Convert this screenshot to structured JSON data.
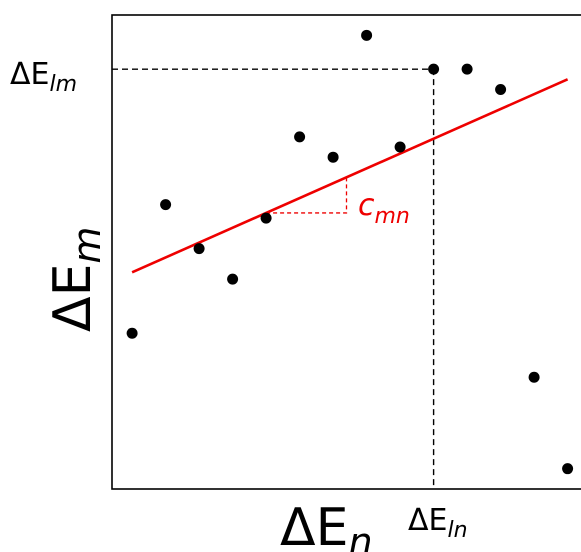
{
  "chart_data": {
    "type": "scatter",
    "title": "",
    "xlabel": {
      "base": "ΔE",
      "sub": "n"
    },
    "ylabel": {
      "base": "ΔE",
      "sub": "m"
    },
    "xlim": [
      0,
      14
    ],
    "ylim": [
      0,
      14
    ],
    "grid": false,
    "ticks": false,
    "series": [
      {
        "points": [
          {
            "x": 0.6,
            "y": 4.6
          },
          {
            "x": 1.6,
            "y": 8.4
          },
          {
            "x": 2.6,
            "y": 7.1
          },
          {
            "x": 3.6,
            "y": 6.2
          },
          {
            "x": 4.6,
            "y": 8.0
          },
          {
            "x": 5.6,
            "y": 10.4
          },
          {
            "x": 6.6,
            "y": 9.8
          },
          {
            "x": 7.6,
            "y": 13.4
          },
          {
            "x": 8.6,
            "y": 10.1
          },
          {
            "x": 9.6,
            "y": 12.4
          },
          {
            "x": 10.6,
            "y": 12.4
          },
          {
            "x": 11.6,
            "y": 11.8
          },
          {
            "x": 12.6,
            "y": 3.3
          },
          {
            "x": 13.6,
            "y": 0.6
          }
        ],
        "color": "#000000"
      }
    ],
    "fit_line": {
      "color": "#ee0000",
      "x": [
        0.6,
        13.6
      ],
      "y": [
        6.4,
        12.1
      ]
    },
    "slope_annotation": {
      "label": {
        "base": "c",
        "sub": "mn"
      },
      "color": "#ee0000",
      "from_x": 4.6,
      "to_x": 7.0
    },
    "reference_point": {
      "x": 9.6,
      "y": 12.4,
      "xlabel": {
        "base": "ΔE",
        "sub": "ln"
      },
      "ylabel": {
        "base": "ΔE",
        "sub": "lm"
      }
    }
  }
}
